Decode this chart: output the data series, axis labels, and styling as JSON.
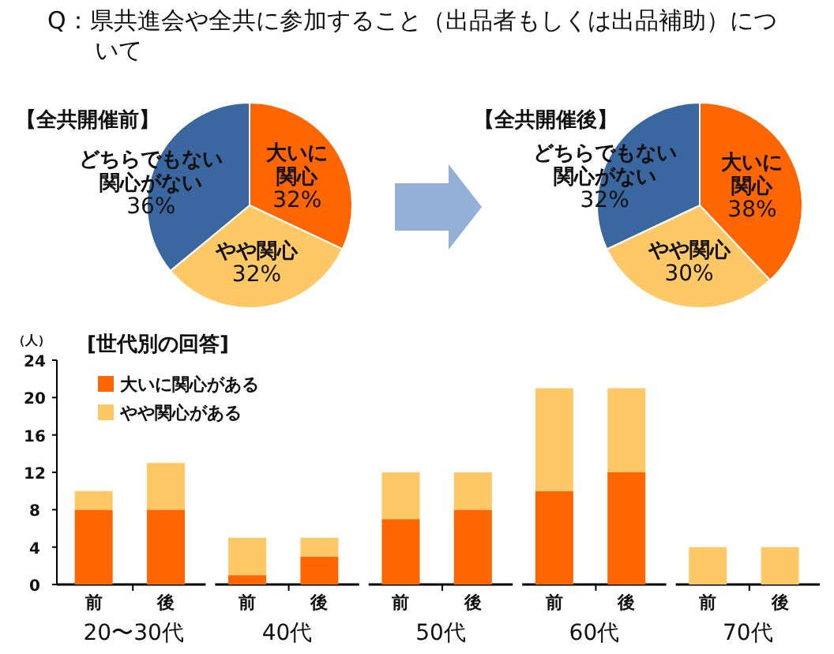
{
  "chart_data": [
    {
      "type": "pie",
      "title": "Q：県共進会や全共に参加すること（出品者もしくは出品補助）について",
      "subtitle": "【全共開催前】",
      "categories": [
        "大いに関心",
        "やや関心",
        "どちらでもない関心がない"
      ],
      "values": [
        32,
        32,
        36
      ],
      "value_labels": [
        "32%",
        "32%",
        "36%"
      ],
      "colors": [
        "#ff6600",
        "#ffc866",
        "#3a679f"
      ]
    },
    {
      "type": "pie",
      "subtitle": "【全共開催後】",
      "categories": [
        "大いに関心",
        "やや関心",
        "どちらでもない関心がない"
      ],
      "values": [
        38,
        30,
        32
      ],
      "value_labels": [
        "38%",
        "30%",
        "32%"
      ],
      "colors": [
        "#ff6600",
        "#ffc866",
        "#3a679f"
      ]
    },
    {
      "type": "bar",
      "stacked": true,
      "title": "[世代別の回答]",
      "ylabel": "（人）",
      "categories": [
        "前",
        "後",
        "前",
        "後",
        "前",
        "後",
        "前",
        "後",
        "前",
        "後"
      ],
      "series": [
        {
          "name": "大いに関心がある",
          "color": "#ff6600",
          "values": [
            8,
            8,
            1,
            3,
            7,
            8,
            10,
            12,
            0,
            0
          ]
        },
        {
          "name": "やや関心がある",
          "color": "#ffc866",
          "values": [
            2,
            5,
            4,
            2,
            5,
            4,
            11,
            9,
            4,
            4
          ]
        }
      ],
      "annotations": [
        "20〜30代",
        "40代",
        "50代",
        "60代",
        "70代"
      ],
      "ylim": [
        0,
        24
      ],
      "yticks": [
        0,
        4,
        8,
        12,
        16,
        20,
        24
      ],
      "legend": "top left",
      "grid": false
    }
  ]
}
